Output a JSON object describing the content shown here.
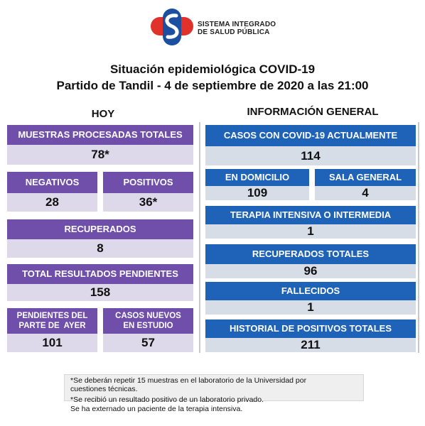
{
  "header": {
    "logo_line1": "SISTEMA INTEGRADO",
    "logo_line2": "DE SALUD PÚBLICA",
    "title_line1": "Situación epidemiológica COVID-19",
    "title_line2": "Partido de Tandil - 4 de septiembre de 2020 a las 21:00"
  },
  "hoy": {
    "section_title": "HOY",
    "muestras_label": "MUESTRAS PROCESADAS TOTALES",
    "muestras_value": "78*",
    "negativos_label": "NEGATIVOS",
    "negativos_value": "28",
    "positivos_label": "POSITIVOS",
    "positivos_value": "36*",
    "recuperados_label": "RECUPERADOS",
    "recuperados_value": "8",
    "pendientes_label": "TOTAL RESULTADOS PENDIENTES",
    "pendientes_value": "158",
    "pend_ayer_label_1": "PENDIENTES DEL",
    "pend_ayer_label_2": "PARTE DE  AYER",
    "pend_ayer_value": "101",
    "casos_estudio_label_1": "CASOS NUEVOS",
    "casos_estudio_label_2": "EN ESTUDIO",
    "casos_estudio_value": "57"
  },
  "general": {
    "section_title": "INFORMACIÓN GENERAL",
    "casos_label": "CASOS CON COVID-19 ACTUALMENTE",
    "casos_value": "114",
    "domicilio_label": "EN DOMICILIO",
    "domicilio_value": "109",
    "sala_label": "SALA GENERAL",
    "sala_value": "4",
    "terapia_label": "TERAPIA INTENSIVA O INTERMEDIA",
    "terapia_value": "1",
    "recuperados_label": "RECUPERADOS TOTALES",
    "recuperados_value": "96",
    "fallecidos_label": "FALLECIDOS",
    "fallecidos_value": "1",
    "historial_label": "HISTORIAL DE POSITIVOS TOTALES",
    "historial_value": "211"
  },
  "notes": {
    "line1": "*Se deberán repetir 15 muestras en el laboratorio de la Universidad por",
    "line2": "cuestiones técnicas.",
    "line3": "*Se recibió un resultado positivo de un laboratorio privado.",
    "line4": "Se ha externado un paciente de la terapia intensiva."
  },
  "colors": {
    "purple": "#6f4faa",
    "blue": "#1f63b8",
    "logo_red": "#e0312b",
    "logo_blue": "#1c4fa0"
  }
}
